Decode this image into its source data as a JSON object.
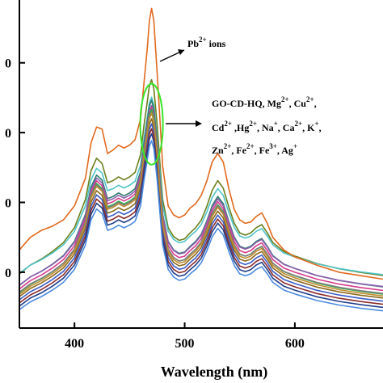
{
  "chart_data": {
    "type": "line",
    "title": "",
    "xlabel": "Wavelength (nm)",
    "ylabel": "",
    "xlim": [
      350,
      680
    ],
    "ylim": [
      0,
      470
    ],
    "x_ticks": [
      400,
      500,
      600
    ],
    "y_ticks": [
      {
        "value": 80,
        "label": "0"
      },
      {
        "value": 180,
        "label": "0"
      },
      {
        "value": 280,
        "label": "0"
      },
      {
        "value": 380,
        "label": "0"
      }
    ],
    "grid": false,
    "annotations": {
      "pb_base": "Pb",
      "pb_sup": "2+",
      "pb_suffix": " ions",
      "line1": [
        {
          "t": "GO-CD-HQ, Mg"
        },
        {
          "t": "2+",
          "sup": true
        },
        {
          "t": ", Cu"
        },
        {
          "t": "2+",
          "sup": true
        },
        {
          "t": ","
        }
      ],
      "line2": [
        {
          "t": "Cd"
        },
        {
          "t": "2+",
          "sup": true
        },
        {
          "t": " ,Hg"
        },
        {
          "t": "2+",
          "sup": true
        },
        {
          "t": ", Na"
        },
        {
          "t": "+",
          "sup": true
        },
        {
          "t": ", Ca"
        },
        {
          "t": "2+",
          "sup": true
        },
        {
          "t": ", K"
        },
        {
          "t": "+",
          "sup": true
        },
        {
          "t": ","
        }
      ],
      "line3": [
        {
          "t": "Zn"
        },
        {
          "t": "2+",
          "sup": true
        },
        {
          "t": ", Fe"
        },
        {
          "t": "2+",
          "sup": true
        },
        {
          "t": ", Fe"
        },
        {
          "t": "3+",
          "sup": true
        },
        {
          "t": ", Ag"
        },
        {
          "t": "+",
          "sup": true
        }
      ]
    },
    "highlight_color": "#39e52b",
    "pb_series": {
      "color": "#e2691d",
      "x": [
        350,
        360,
        370,
        380,
        390,
        400,
        410,
        415,
        420,
        425,
        430,
        435,
        440,
        445,
        450,
        455,
        460,
        463,
        466,
        468,
        470,
        472,
        475,
        478,
        480,
        485,
        490,
        495,
        500,
        505,
        510,
        515,
        520,
        525,
        530,
        535,
        540,
        545,
        550,
        555,
        560,
        565,
        570,
        575,
        580,
        590,
        600,
        620,
        640,
        660,
        680
      ],
      "y": [
        112,
        130,
        140,
        146,
        155,
        175,
        215,
        265,
        288,
        285,
        250,
        255,
        262,
        258,
        262,
        270,
        300,
        350,
        400,
        440,
        458,
        440,
        365,
        288,
        232,
        175,
        162,
        158,
        162,
        172,
        178,
        190,
        210,
        238,
        250,
        238,
        200,
        170,
        155,
        150,
        152,
        160,
        165,
        150,
        130,
        112,
        102,
        90,
        80,
        75,
        70
      ]
    },
    "group_base": {
      "x": [
        350,
        360,
        370,
        380,
        390,
        400,
        410,
        415,
        420,
        425,
        430,
        435,
        440,
        445,
        450,
        455,
        460,
        463,
        466,
        468,
        470,
        472,
        475,
        478,
        480,
        485,
        490,
        495,
        500,
        505,
        510,
        515,
        520,
        525,
        530,
        535,
        540,
        545,
        550,
        555,
        560,
        565,
        570,
        575,
        580,
        590,
        600,
        620,
        640,
        660,
        680
      ],
      "y": [
        50,
        62,
        70,
        80,
        92,
        112,
        150,
        188,
        205,
        198,
        172,
        175,
        180,
        176,
        180,
        186,
        210,
        248,
        280,
        302,
        310,
        298,
        250,
        190,
        150,
        112,
        100,
        95,
        97,
        105,
        112,
        122,
        140,
        162,
        175,
        165,
        140,
        118,
        105,
        102,
        105,
        112,
        116,
        105,
        92,
        80,
        74,
        64,
        57,
        52,
        48
      ]
    },
    "series": [
      {
        "color": "#6b7f1c",
        "offset": 24,
        "scale": 1.07
      },
      {
        "color": "#4fc4c8",
        "offset": 30,
        "scale": 0.97
      },
      {
        "color": "#2a7a6b",
        "offset": 10,
        "scale": 1.02
      },
      {
        "color": "#8c5fb0",
        "offset": 12,
        "scale": 0.99
      },
      {
        "color": "#d63b8a",
        "offset": 6,
        "scale": 1.0
      },
      {
        "color": "#2cb24a",
        "offset": 0,
        "scale": 1.01
      },
      {
        "color": "#8a6a1c",
        "offset": -4,
        "scale": 0.98
      },
      {
        "color": "#3b5cc6",
        "offset": -8,
        "scale": 0.97
      },
      {
        "color": "#8b2a2a",
        "offset": -12,
        "scale": 0.96
      },
      {
        "color": "#1f3f8a",
        "offset": -16,
        "scale": 0.95
      },
      {
        "color": "#7c7c7c",
        "offset": 2,
        "scale": 0.99
      },
      {
        "color": "#c28b2c",
        "offset": -2,
        "scale": 1.0
      },
      {
        "color": "#4a8ae0",
        "offset": -20,
        "scale": 0.93
      }
    ]
  }
}
